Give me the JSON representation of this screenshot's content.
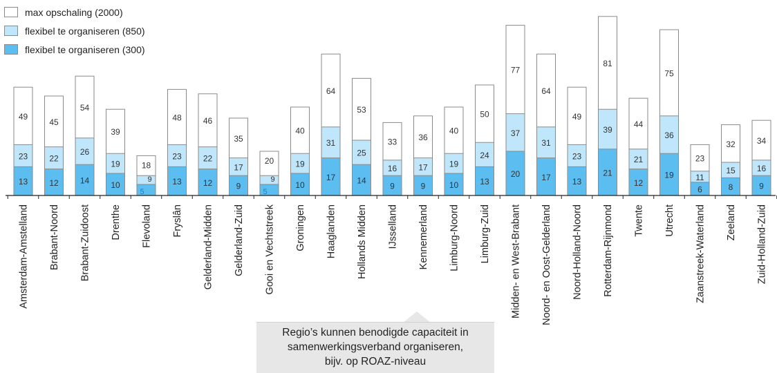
{
  "legend": [
    {
      "label": "max opschaling (2000)",
      "color": "#ffffff"
    },
    {
      "label": "flexibel te organiseren (850)",
      "color": "#bfe6fa"
    },
    {
      "label": "flexibel te organiseren (300)",
      "color": "#5bbdf0"
    }
  ],
  "callout": {
    "lines": [
      "Regio’s kunnen benodigde capaciteit in",
      "samenwerkingsverband organiseren,",
      "bijv. op ROAZ-niveau"
    ]
  },
  "chart_data": {
    "type": "bar",
    "stacked": true,
    "categories": [
      "Amsterdam-Amstelland",
      "Brabant-Noord",
      "Brabant-Zuidoost",
      "Drenthe",
      "Flevoland",
      "Fryslân",
      "Gelderland-Midden",
      "Gelderland-Zuid",
      "Gooi en Vechtstreek",
      "Groningen",
      "Haaglanden",
      "Hollands Midden",
      "IJsselland",
      "Kennemerland",
      "Limburg-Noord",
      "Limburg-Zuid",
      "Midden- en West-Brabant",
      "Noord- en Oost-Gelderland",
      "Noord-Holland-Noord",
      "Rotterdam-Rijnmond",
      "Twente",
      "Utrecht",
      "Zaanstreek-Waterland",
      "Zeeland",
      "Zuid-Holland-Zuid"
    ],
    "series": [
      {
        "name": "flexibel te organiseren (300)",
        "color": "#5bbdf0",
        "values": [
          13,
          12,
          14,
          10,
          5,
          13,
          12,
          9,
          5,
          10,
          17,
          14,
          9,
          9,
          10,
          13,
          20,
          17,
          13,
          21,
          12,
          19,
          6,
          8,
          9
        ]
      },
      {
        "name": "flexibel te organiseren (850)",
        "color": "#bfe6fa",
        "values": [
          23,
          22,
          26,
          19,
          9,
          23,
          22,
          17,
          9,
          19,
          31,
          25,
          16,
          17,
          19,
          24,
          37,
          31,
          23,
          39,
          21,
          36,
          11,
          15,
          16
        ]
      },
      {
        "name": "max opschaling (2000)",
        "color": "#ffffff",
        "values": [
          49,
          45,
          54,
          39,
          18,
          48,
          46,
          35,
          20,
          40,
          64,
          53,
          33,
          36,
          40,
          50,
          77,
          64,
          49,
          81,
          44,
          75,
          23,
          32,
          34
        ]
      }
    ],
    "grid": false,
    "legend_position": "top-left"
  }
}
